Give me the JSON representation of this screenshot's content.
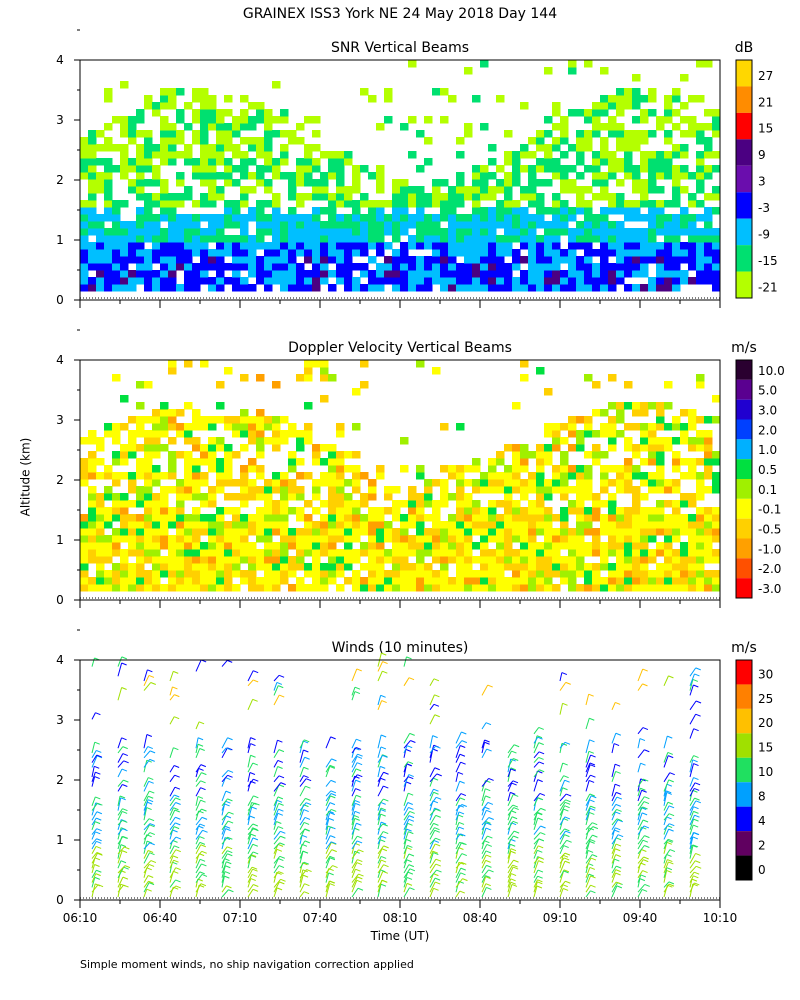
{
  "header": {
    "title": "GRAINEX ISS3 York NE  24 May 2018 Day 144",
    "y_axis_label": "Altitude (km)",
    "x_axis_label": "Time (UT)",
    "footnote": "Simple moment winds, no ship navigation correction applied"
  },
  "chart_data": [
    {
      "type": "heatmap",
      "title": "SNR Vertical Beams",
      "units": "dB",
      "ylim": [
        0,
        4
      ],
      "yticks": [
        "0",
        "1",
        "2",
        "3",
        "4"
      ],
      "xlim": [
        "06:10",
        "10:10"
      ],
      "colorbar_labels": [
        "27",
        "21",
        "15",
        "9",
        "3",
        "-3",
        "-9",
        "-15",
        "-21"
      ],
      "colorbar_colors": [
        "#ffd700",
        "#ff8c00",
        "#ff0000",
        "#4b0082",
        "#6a0dad",
        "#0000ff",
        "#00bfff",
        "#00e070",
        "#b4ff00"
      ]
    },
    {
      "type": "heatmap",
      "title": "Doppler Velocity Vertical Beams",
      "units": "m/s",
      "ylim": [
        0,
        4
      ],
      "yticks": [
        "0",
        "1",
        "2",
        "3",
        "4"
      ],
      "xlim": [
        "06:10",
        "10:10"
      ],
      "colorbar_labels": [
        "10.0",
        "5.0",
        "3.0",
        "2.0",
        "1.0",
        "0.5",
        "0.1",
        "-0.1",
        "-0.5",
        "-1.0",
        "-2.0",
        "-3.0"
      ],
      "colorbar_colors": [
        "#2a0030",
        "#5a0090",
        "#2000d0",
        "#0040ff",
        "#00b0ff",
        "#00e040",
        "#a0f000",
        "#ffff00",
        "#ffd000",
        "#ffa000",
        "#ff5000",
        "#ff0000"
      ]
    },
    {
      "type": "scatter",
      "title": "Winds (10 minutes)",
      "units": "m/s",
      "ylim": [
        0,
        4
      ],
      "yticks": [
        "0",
        "1",
        "2",
        "3",
        "4"
      ],
      "x": [
        "06:10",
        "06:40",
        "07:10",
        "07:40",
        "08:10",
        "08:40",
        "09:10",
        "09:40",
        "10:10"
      ],
      "colorbar_labels": [
        "30",
        "25",
        "20",
        "15",
        "10",
        "8",
        "4",
        "2",
        "0"
      ],
      "colorbar_colors": [
        "#ff0000",
        "#ff8000",
        "#ffc000",
        "#a0e000",
        "#20e060",
        "#00a0ff",
        "#0000ff",
        "#600060",
        "#000000"
      ]
    }
  ]
}
